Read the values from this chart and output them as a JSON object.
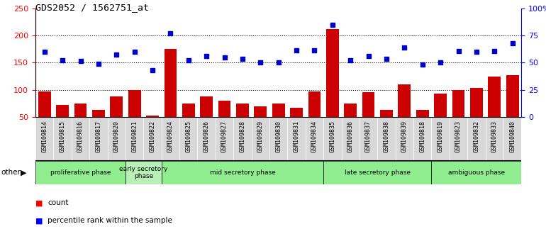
{
  "title": "GDS2052 / 1562751_at",
  "samples": [
    "GSM109814",
    "GSM109815",
    "GSM109816",
    "GSM109817",
    "GSM109820",
    "GSM109821",
    "GSM109822",
    "GSM109824",
    "GSM109825",
    "GSM109826",
    "GSM109827",
    "GSM109828",
    "GSM109829",
    "GSM109830",
    "GSM109831",
    "GSM109834",
    "GSM109835",
    "GSM109836",
    "GSM109837",
    "GSM109838",
    "GSM109839",
    "GSM109818",
    "GSM109819",
    "GSM109823",
    "GSM109832",
    "GSM109833",
    "GSM109840"
  ],
  "counts": [
    97,
    72,
    75,
    63,
    88,
    100,
    52,
    175,
    75,
    88,
    80,
    75,
    69,
    75,
    67,
    97,
    213,
    75,
    95,
    63,
    110,
    62,
    93,
    100,
    104,
    125,
    127
  ],
  "percentiles": [
    170,
    154,
    153,
    148,
    165,
    170,
    136,
    205,
    154,
    163,
    160,
    157,
    151,
    150,
    173,
    173,
    220,
    155,
    162,
    157,
    178,
    147,
    150,
    172,
    170,
    172,
    186
  ],
  "phases": [
    {
      "label": "proliferative phase",
      "start": 0,
      "end": 5,
      "color": "#90EE90"
    },
    {
      "label": "early secretory\nphase",
      "start": 5,
      "end": 7,
      "color": "#b8f0b8"
    },
    {
      "label": "mid secretory phase",
      "start": 7,
      "end": 16,
      "color": "#90EE90"
    },
    {
      "label": "late secretory phase",
      "start": 16,
      "end": 22,
      "color": "#90EE90"
    },
    {
      "label": "ambiguous phase",
      "start": 22,
      "end": 27,
      "color": "#90EE90"
    }
  ],
  "bar_color": "#cc0000",
  "dot_color": "#0000cc",
  "ylim_left": [
    50,
    250
  ],
  "ylim_right": [
    0,
    100
  ],
  "yticks_left": [
    50,
    100,
    150,
    200,
    250
  ],
  "ytick_labels_right": [
    "0",
    "25",
    "50",
    "75",
    "100%"
  ],
  "grid_lines": [
    100,
    150,
    200
  ],
  "tick_bg_color": "#d8d8d8",
  "other_label": "other"
}
